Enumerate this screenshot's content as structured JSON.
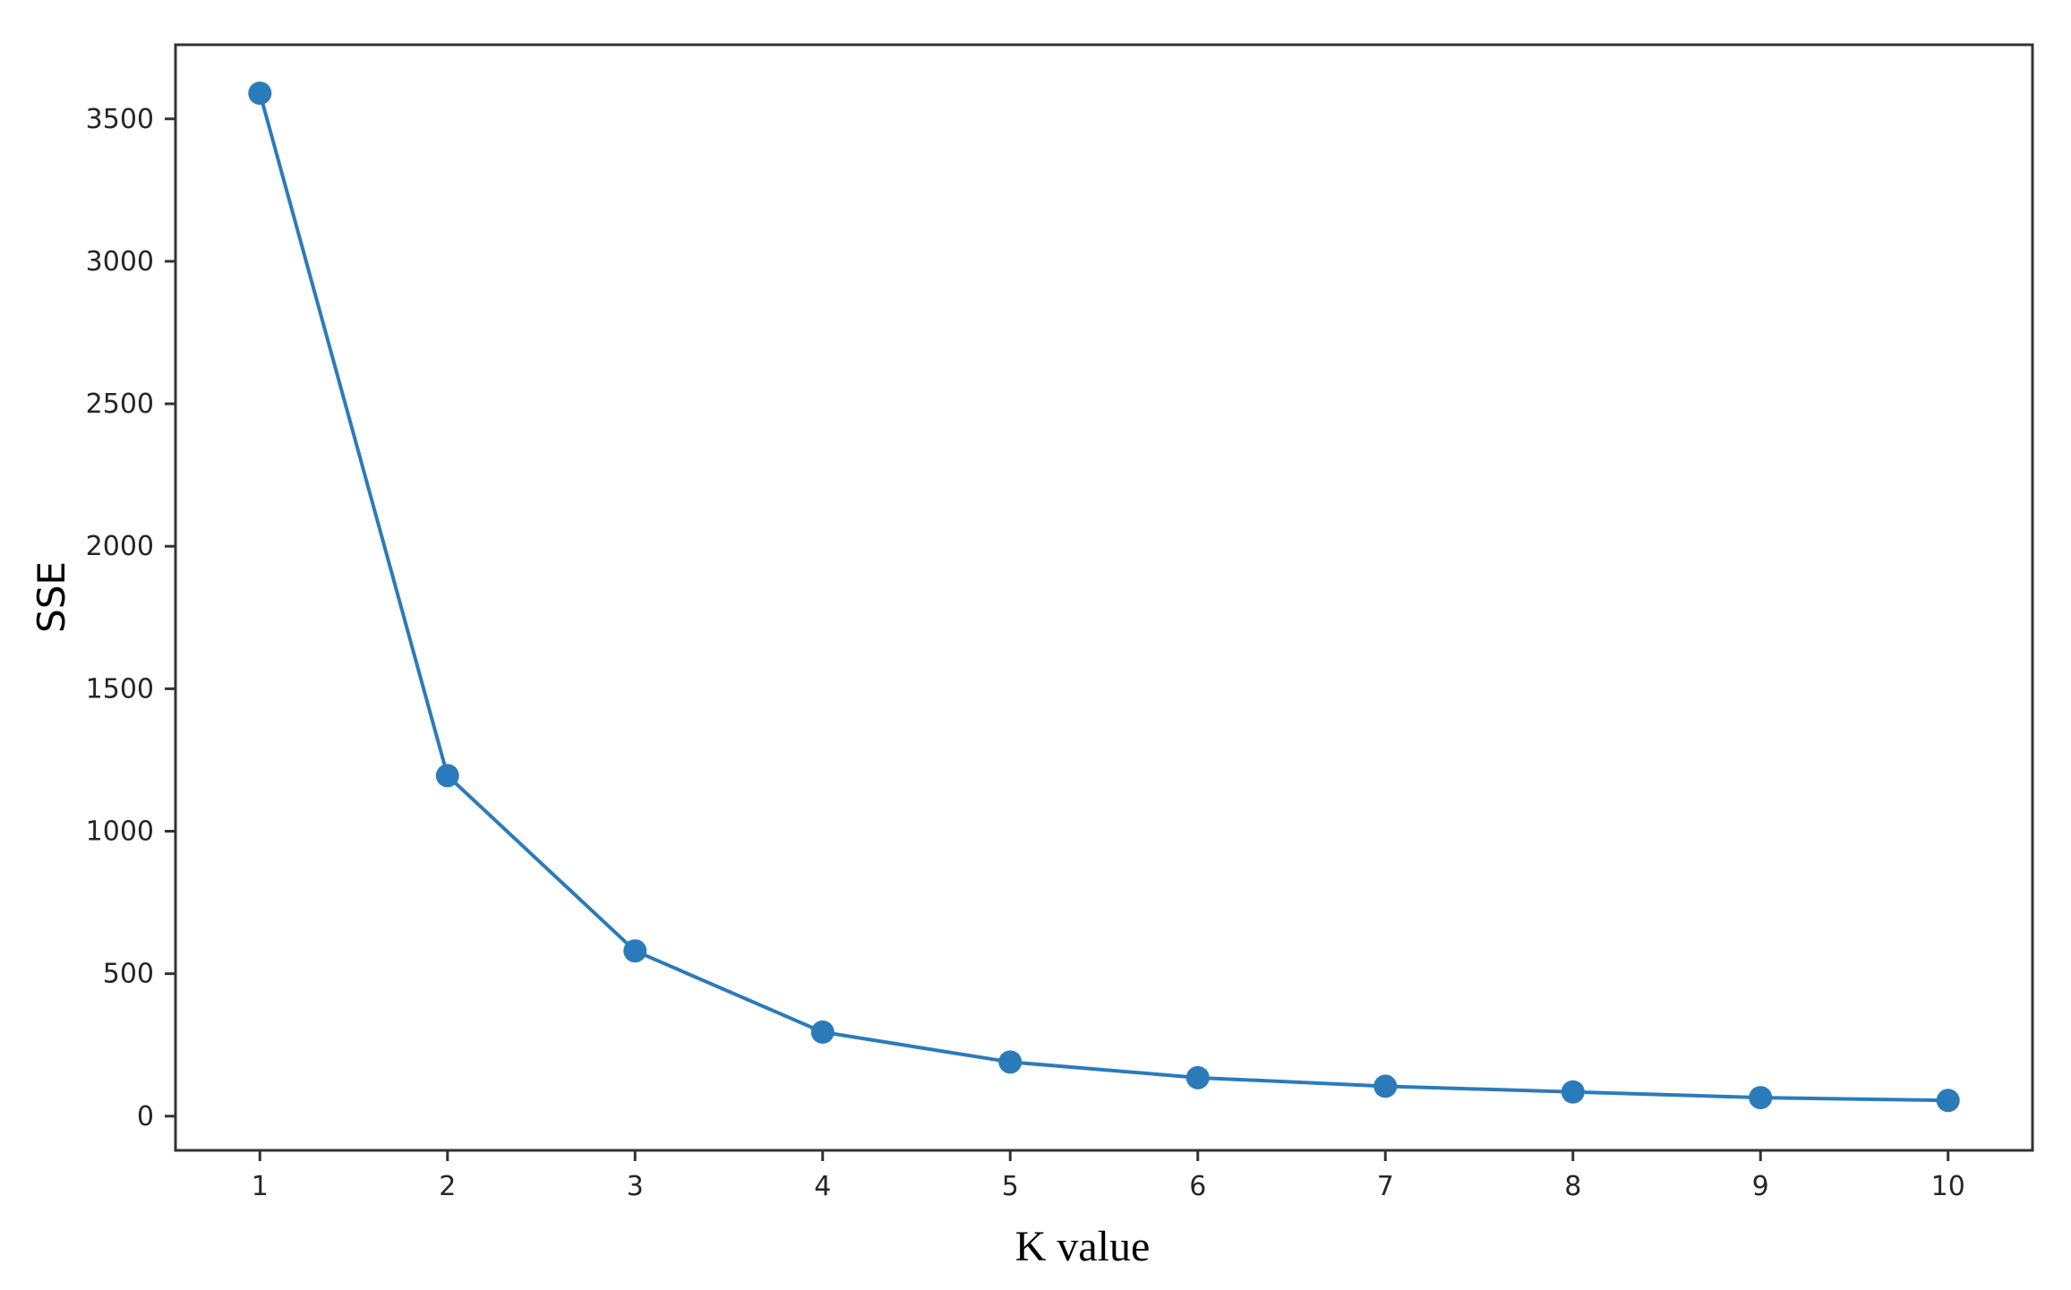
{
  "chart_data": {
    "type": "line",
    "title": "",
    "xlabel": "K value",
    "ylabel": "SSE",
    "x": [
      1,
      2,
      3,
      4,
      5,
      6,
      7,
      8,
      9,
      10
    ],
    "series": [
      {
        "values": [
          3590,
          1195,
          580,
          295,
          190,
          135,
          105,
          85,
          65,
          55
        ]
      }
    ],
    "xticks": [
      1,
      2,
      3,
      4,
      5,
      6,
      7,
      8,
      9,
      10
    ],
    "yticks": [
      0,
      500,
      1000,
      1500,
      2000,
      2500,
      3000,
      3500
    ],
    "xlim": [
      0.55,
      10.45
    ],
    "ylim": [
      -120,
      3760
    ],
    "grid": false,
    "legend": "none",
    "line_color": "#2b7bba"
  }
}
